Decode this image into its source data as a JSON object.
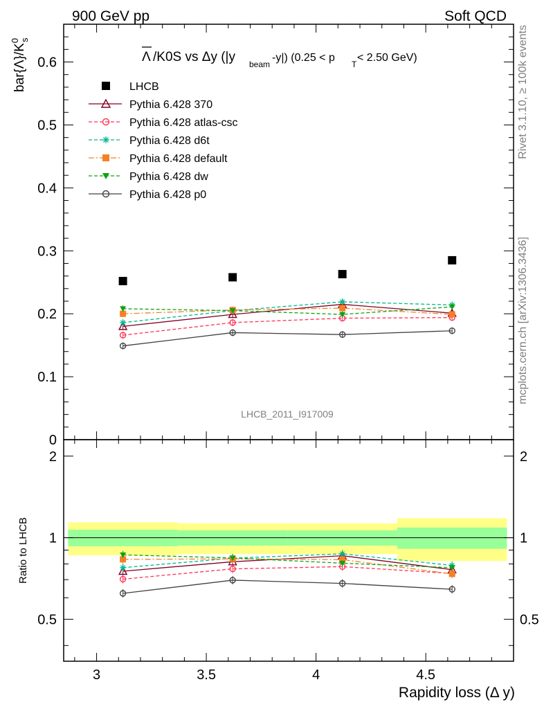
{
  "header": {
    "left": "900 GeV pp",
    "right": "Soft QCD"
  },
  "side_labels": {
    "rivet": "Rivet 3.1.10, ≥ 100k events",
    "mcplots": "mcplots.cern.ch [arXiv:1306.3436]"
  },
  "watermark": "LHCB_2011_I917009",
  "chart_data": [
    {
      "type": "scatter",
      "title": "Λ̅/K0S vs Δy (|y_beam-y|) (0.25 < p_T < 2.50 GeV)",
      "title_parts": {
        "a": "/K0S vs Δy (|y",
        "b": "beam",
        "c": "-y|) (0.25 < p",
        "d": "T",
        "e": " < 2.50 GeV)"
      },
      "ylabel": "bar{Λ}/K0s",
      "ylabel_parts": {
        "main": "bar{Λ}/K",
        "sup": "0",
        "sub": "s"
      },
      "ylim": [
        0,
        0.66
      ],
      "yticks": [
        "0",
        "0.1",
        "0.2",
        "0.3",
        "0.4",
        "0.5",
        "0.6"
      ],
      "x": [
        3.12,
        3.62,
        4.12,
        4.62
      ],
      "series": [
        {
          "name": "LHCB",
          "color": "#000000",
          "marker": "square-filled",
          "line": "none",
          "values": [
            0.252,
            0.258,
            0.263,
            0.285
          ]
        },
        {
          "name": "Pythia 6.428 370",
          "color": "#800020",
          "marker": "triangle-open",
          "line": "solid",
          "values": [
            0.18,
            0.199,
            0.215,
            0.201
          ]
        },
        {
          "name": "Pythia 6.428 atlas-csc",
          "color": "#ff3355",
          "marker": "circle-open",
          "line": "dashed",
          "values": [
            0.166,
            0.186,
            0.193,
            0.194
          ]
        },
        {
          "name": "Pythia 6.428 d6t",
          "color": "#00b890",
          "marker": "star",
          "line": "dashed",
          "values": [
            0.186,
            0.205,
            0.219,
            0.214
          ]
        },
        {
          "name": "Pythia 6.428 default",
          "color": "#f58025",
          "marker": "square-filled",
          "line": "dashdot",
          "values": [
            0.2,
            0.206,
            0.209,
            0.199
          ]
        },
        {
          "name": "Pythia 6.428 dw",
          "color": "#10a010",
          "marker": "triangle-down-filled",
          "line": "dashed",
          "values": [
            0.208,
            0.205,
            0.199,
            0.211
          ]
        },
        {
          "name": "Pythia 6.428 p0",
          "color": "#404040",
          "marker": "circle-open",
          "line": "solid",
          "values": [
            0.149,
            0.17,
            0.167,
            0.173
          ]
        }
      ]
    },
    {
      "type": "line",
      "ylabel": "Ratio to LHCB",
      "xlabel": "Rapidity loss (Δ y)",
      "xlim": [
        2.85,
        4.9
      ],
      "xticks": [
        "3",
        "3.5",
        "4",
        "4.5"
      ],
      "ylim": [
        0.35,
        2.3
      ],
      "yticks": [
        "0.5",
        "1",
        "2"
      ],
      "bands": [
        {
          "x_range": [
            2.87,
            3.37
          ],
          "inner": [
            0.93,
            1.07
          ],
          "outer": [
            0.86,
            1.14
          ]
        },
        {
          "x_range": [
            3.37,
            3.87
          ],
          "inner": [
            0.935,
            1.065
          ],
          "outer": [
            0.87,
            1.13
          ]
        },
        {
          "x_range": [
            3.87,
            4.37
          ],
          "inner": [
            0.935,
            1.065
          ],
          "outer": [
            0.87,
            1.13
          ]
        },
        {
          "x_range": [
            4.37,
            4.87
          ],
          "inner": [
            0.91,
            1.09
          ],
          "outer": [
            0.82,
            1.18
          ]
        }
      ],
      "series": [
        {
          "name": "Pythia 6.428 370",
          "values": [
            0.752,
            0.815,
            0.858,
            0.762
          ]
        },
        {
          "name": "Pythia 6.428 atlas-csc",
          "values": [
            0.703,
            0.767,
            0.782,
            0.738
          ]
        },
        {
          "name": "Pythia 6.428 d6t",
          "values": [
            0.775,
            0.84,
            0.872,
            0.79
          ]
        },
        {
          "name": "Pythia 6.428 default",
          "values": [
            0.832,
            0.835,
            0.83,
            0.735
          ]
        },
        {
          "name": "Pythia 6.428 dw",
          "values": [
            0.864,
            0.842,
            0.805,
            0.775
          ]
        },
        {
          "name": "Pythia 6.428 p0",
          "values": [
            0.623,
            0.697,
            0.678,
            0.645
          ]
        }
      ]
    }
  ]
}
